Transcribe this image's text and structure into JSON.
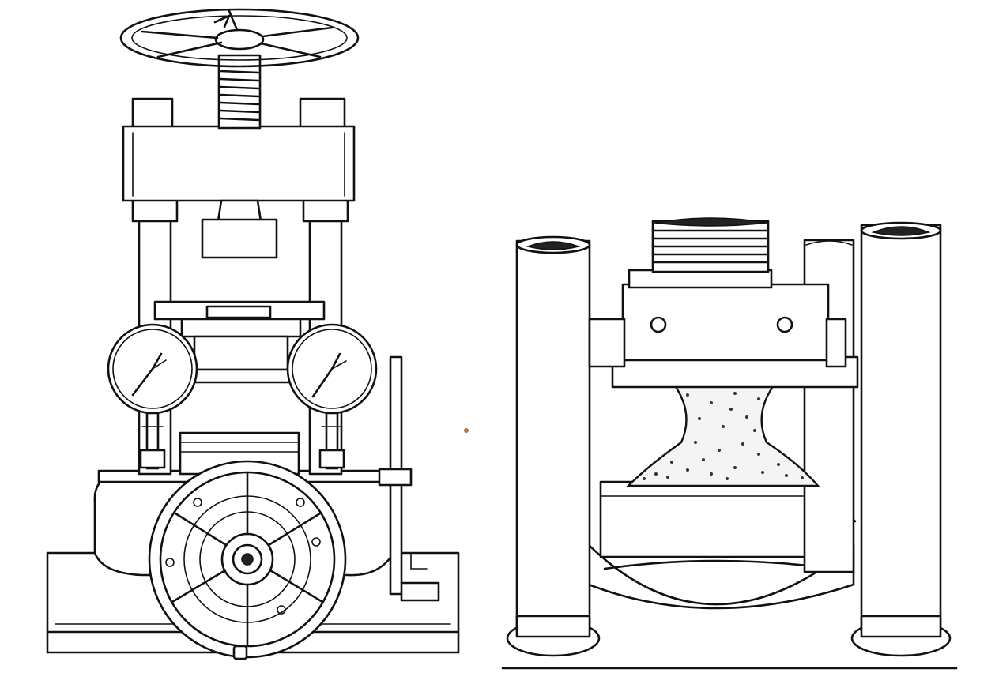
{
  "figure": {
    "panels": [
      {
        "id": "left",
        "subject": "press-machine-full-view"
      },
      {
        "id": "right",
        "subject": "press-closeup-compressed-specimen"
      }
    ],
    "colors": {
      "ink": "#111111",
      "paper": "#ffffff"
    }
  }
}
